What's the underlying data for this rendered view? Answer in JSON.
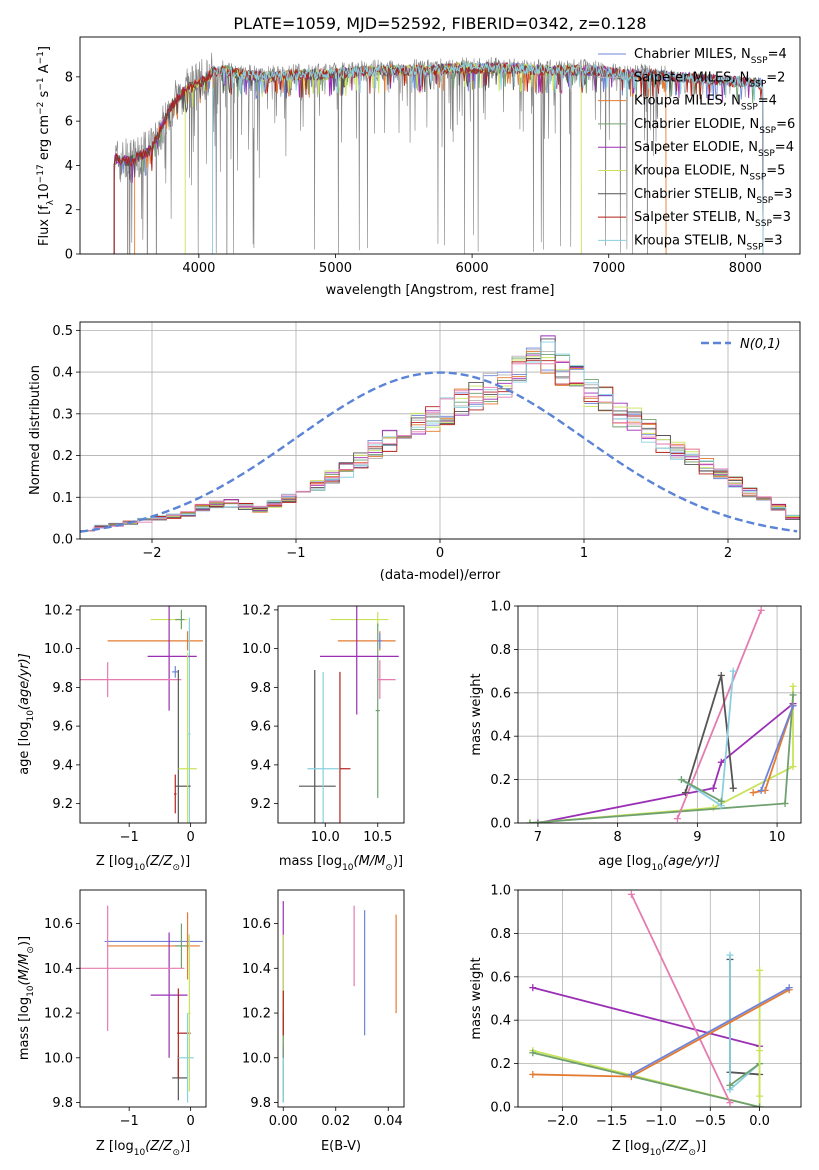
{
  "figure_title": "PLATE=1059, MJD=52592, FIBERID=0342, z=0.128",
  "palette": [
    "#6f84d8",
    "#b5b5b5",
    "#e47b32",
    "#6fa06f",
    "#9a2fb5",
    "#c9e35a",
    "#555555",
    "#b2221c",
    "#8ad0e0",
    "#e57bb0"
  ],
  "chart_data": [
    {
      "id": "spectrum",
      "type": "line",
      "title": "PLATE=1059, MJD=52592, FIBERID=0342, z=0.128",
      "xlabel": "wavelength [Angstrom, rest frame]",
      "ylabel": "Flux [f",
      "ylabel_sub": "λ",
      "ylabel_rest": "10",
      "ylabel_exp": "−17",
      "ylabel_tail": " erg cm",
      "xlim": [
        3130,
        8400
      ],
      "ylim": [
        0,
        9.8
      ],
      "xticks": [
        4000,
        5000,
        6000,
        7000,
        8000
      ],
      "yticks": [
        0,
        2,
        4,
        6,
        8
      ],
      "grid": false,
      "legend_position": "top-right",
      "data_color": "#808080",
      "legend": [
        {
          "name": "Chabrier MILES, N",
          "sub": "SSP",
          "val": "=4",
          "color": "#6f84d8"
        },
        {
          "name": "Salpeter MILES, N",
          "sub": "SSP",
          "val": "=2",
          "color": "#b5b5b5"
        },
        {
          "name": "Kroupa MILES, N",
          "sub": "SSP",
          "val": "=4",
          "color": "#e47b32"
        },
        {
          "name": "Chabrier ELODIE, N",
          "sub": "SSP",
          "val": "=6",
          "color": "#6fa06f"
        },
        {
          "name": "Salpeter ELODIE, N",
          "sub": "SSP",
          "val": "=4",
          "color": "#9a2fb5"
        },
        {
          "name": "Kroupa ELODIE, N",
          "sub": "SSP",
          "val": "=5",
          "color": "#c9e35a"
        },
        {
          "name": "Chabrier STELIB, N",
          "sub": "SSP",
          "val": "=3",
          "color": "#555555"
        },
        {
          "name": "Salpeter STELIB, N",
          "sub": "SSP",
          "val": "=3",
          "color": "#b2221c"
        },
        {
          "name": "Kroupa STELIB, N",
          "sub": "SSP",
          "val": "=3",
          "color": "#8ad0e0"
        }
      ],
      "continuum": {
        "x": [
          3350,
          3500,
          3650,
          3800,
          3900,
          4000,
          4100,
          4200,
          4300,
          4500,
          4700,
          4900,
          5100,
          5300,
          5500,
          5700,
          5900,
          6100,
          6300,
          6500,
          6700,
          6900,
          7100,
          7300,
          7500,
          7700,
          7900,
          8100
        ],
        "y": [
          4.3,
          4.2,
          4.7,
          6.7,
          7.4,
          7.7,
          8.2,
          8.3,
          8.1,
          8.0,
          8.1,
          8.1,
          8.2,
          8.3,
          8.3,
          8.3,
          8.4,
          8.4,
          8.4,
          8.3,
          8.3,
          8.3,
          8.1,
          8.1,
          8.0,
          7.9,
          7.8,
          7.7
        ]
      }
    },
    {
      "id": "residuals",
      "type": "histogram",
      "xlabel": "(data-model)/error",
      "ylabel": "Normed distribution",
      "xlim": [
        -2.5,
        2.5
      ],
      "ylim": [
        0,
        0.52
      ],
      "xticks": [
        -2,
        -1,
        0,
        1,
        2
      ],
      "yticks": [
        0.0,
        0.1,
        0.2,
        0.3,
        0.4,
        0.5
      ],
      "grid": true,
      "legend_position": "top-right",
      "gaussian_label": "N(0,1)",
      "gaussian_color": "#5b84d6",
      "bin_width": 0.1,
      "bin_start": -2.5,
      "series_heights": [
        0.022,
        0.03,
        0.034,
        0.04,
        0.045,
        0.05,
        0.055,
        0.06,
        0.075,
        0.082,
        0.086,
        0.078,
        0.072,
        0.085,
        0.098,
        0.115,
        0.13,
        0.15,
        0.165,
        0.19,
        0.215,
        0.235,
        0.255,
        0.275,
        0.29,
        0.305,
        0.325,
        0.34,
        0.36,
        0.38,
        0.42,
        0.445,
        0.44,
        0.405,
        0.38,
        0.35,
        0.335,
        0.3,
        0.285,
        0.26,
        0.23,
        0.21,
        0.195,
        0.175,
        0.155,
        0.135,
        0.115,
        0.095,
        0.075,
        0.052
      ]
    },
    {
      "id": "age_vs_Z",
      "type": "errorbar",
      "xlabel": "Z [log",
      "xlabel_sub": "10",
      "xlabel_mid": "(Z/Z",
      "xlabel_sub2": "⊙",
      "xlabel_tail": ")]",
      "ylabel": "age  [log",
      "ylabel_sub": "10",
      "ylabel_tail": "(age/yr)]",
      "xlim": [
        -1.8,
        0.25
      ],
      "ylim": [
        9.1,
        10.22
      ],
      "xticks": [
        -1,
        0
      ],
      "yticks": [
        9.2,
        9.4,
        9.6,
        9.8,
        10.0,
        10.2
      ],
      "points": [
        {
          "x": -0.25,
          "y": 9.88,
          "xerr": [
            0.05,
            0.05
          ],
          "yerr": 0.03,
          "color": "#6f84d8"
        },
        {
          "x": -0.05,
          "y": 10.04,
          "xerr": [
            1.3,
            0.25
          ],
          "yerr": 0.05,
          "color": "#e47b32"
        },
        {
          "x": -0.02,
          "y": 9.56,
          "xerr": [
            0.02,
            0.02
          ],
          "yerr": 0.6,
          "color": "#8ad0e0"
        },
        {
          "x": -0.15,
          "y": 10.15,
          "xerr": [
            0.5,
            0.1
          ],
          "yerr": 0.04,
          "color": "#c9e35a"
        },
        {
          "x": -0.15,
          "y": 10.15,
          "xerr": [
            0.1,
            0.05
          ],
          "yerr": 0.05,
          "color": "#6fa06f"
        },
        {
          "x": -0.35,
          "y": 9.96,
          "xerr": [
            0.35,
            0.45
          ],
          "yerr": 0.28,
          "color": "#9a2fb5"
        },
        {
          "x": -1.35,
          "y": 9.84,
          "xerr": [
            0.45,
            1.2
          ],
          "yerr": 0.09,
          "color": "#e57bb0"
        },
        {
          "x": -0.2,
          "y": 9.29,
          "xerr": [
            0.05,
            0.2
          ],
          "yerr": 0.6,
          "color": "#555555"
        },
        {
          "x": -0.25,
          "y": 9.25,
          "xerr": [
            0.02,
            0.02
          ],
          "yerr": 0.1,
          "color": "#b2221c"
        },
        {
          "x": -0.05,
          "y": 9.38,
          "xerr": [
            0.15,
            0.15
          ],
          "yerr": 0.6,
          "color": "#c9e35a"
        }
      ]
    },
    {
      "id": "age_vs_mass",
      "type": "errorbar",
      "xlabel": "mass [log",
      "xlabel_sub": "10",
      "xlabel_mid": "(M/M",
      "xlabel_sub2": "⊙",
      "xlabel_tail": ")]",
      "xlim": [
        9.55,
        10.75
      ],
      "ylim": [
        9.1,
        10.22
      ],
      "xticks": [
        10.0,
        10.5
      ],
      "yticks": [
        9.2,
        9.4,
        9.6,
        9.8,
        10.0,
        10.2
      ],
      "points": [
        {
          "x": 9.9,
          "y": 9.29,
          "xerr": [
            0.15,
            0.2
          ],
          "yerr": 0.6,
          "color": "#555555"
        },
        {
          "x": 9.98,
          "y": 9.38,
          "xerr": [
            0.15,
            0.15
          ],
          "yerr": 0.5,
          "color": "#8ad0e0"
        },
        {
          "x": 10.14,
          "y": 9.38,
          "xerr": [
            0.0,
            0.1
          ],
          "yerr": 0.5,
          "color": "#b2221c"
        },
        {
          "x": 10.5,
          "y": 10.15,
          "xerr": [
            0.45,
            0.1
          ],
          "yerr": 0.04,
          "color": "#c9e35a"
        },
        {
          "x": 10.5,
          "y": 9.68,
          "xerr": [
            0.02,
            0.02
          ],
          "yerr": 0.45,
          "color": "#6fa06f"
        },
        {
          "x": 10.52,
          "y": 10.04,
          "xerr": [
            0.4,
            0.15
          ],
          "yerr": 0.05,
          "color": "#e47b32"
        },
        {
          "x": 10.3,
          "y": 9.96,
          "xerr": [
            0.35,
            0.4
          ],
          "yerr": 0.3,
          "color": "#9a2fb5"
        },
        {
          "x": 10.52,
          "y": 9.84,
          "xerr": [
            0.02,
            0.15
          ],
          "yerr": 0.1,
          "color": "#e57bb0"
        },
        {
          "x": 10.52,
          "y": 10.04,
          "xerr": [
            0.02,
            0.02
          ],
          "yerr": 0.04,
          "color": "#6f84d8"
        }
      ]
    },
    {
      "id": "massweight_vs_age",
      "type": "line",
      "xlabel": "age  [log",
      "xlabel_sub": "10",
      "xlabel_tail": "(age/yr)]",
      "ylabel": "mass weight",
      "xlim": [
        6.75,
        10.3
      ],
      "ylim": [
        0,
        1.0
      ],
      "xticks": [
        7,
        8,
        9,
        10
      ],
      "yticks": [
        0.0,
        0.2,
        0.4,
        0.6,
        0.8,
        1.0
      ],
      "grid": true,
      "series": [
        {
          "color": "#9a2fb5",
          "x": [
            7.0,
            9.2,
            9.3,
            10.2
          ],
          "y": [
            0.0,
            0.16,
            0.28,
            0.55
          ]
        },
        {
          "color": "#c9e35a",
          "x": [
            6.9,
            9.2,
            10.2,
            10.2
          ],
          "y": [
            0.0,
            0.07,
            0.26,
            0.63
          ]
        },
        {
          "color": "#6fa06f",
          "x": [
            6.9,
            10.1,
            10.2
          ],
          "y": [
            0.0,
            0.09,
            0.59
          ]
        },
        {
          "color": "#e57bb0",
          "x": [
            8.75,
            9.8
          ],
          "y": [
            0.02,
            0.98
          ]
        },
        {
          "color": "#555555",
          "x": [
            8.85,
            9.3,
            9.45
          ],
          "y": [
            0.14,
            0.68,
            0.16
          ]
        },
        {
          "color": "#8ad0e0",
          "x": [
            8.8,
            9.3,
            9.45
          ],
          "y": [
            0.2,
            0.08,
            0.7
          ]
        },
        {
          "color": "#6fa06f",
          "x": [
            8.8,
            9.3
          ],
          "y": [
            0.2,
            0.1
          ]
        },
        {
          "color": "#e47b32",
          "x": [
            9.7,
            9.85,
            10.2
          ],
          "y": [
            0.14,
            0.15,
            0.54
          ]
        },
        {
          "color": "#6f84d8",
          "x": [
            9.8,
            10.2
          ],
          "y": [
            0.15,
            0.54
          ]
        }
      ]
    },
    {
      "id": "mass_vs_Z",
      "type": "errorbar",
      "xlabel": "Z [log",
      "xlabel_sub": "10",
      "xlabel_mid": "(Z/Z",
      "xlabel_sub2": "⊙",
      "xlabel_tail": ")]",
      "ylabel": "mass [log",
      "ylabel_sub": "10",
      "ylabel_mid": "(M/M",
      "ylabel_sub2": "⊙",
      "ylabel_tail": ")]",
      "xlim": [
        -1.8,
        0.25
      ],
      "ylim": [
        9.78,
        10.75
      ],
      "xticks": [
        -1,
        0
      ],
      "yticks": [
        9.8,
        10.0,
        10.2,
        10.4,
        10.6
      ],
      "points": [
        {
          "x": -0.05,
          "y": 10.52,
          "xerr": [
            1.35,
            0.25
          ],
          "yerr": 0.04,
          "color": "#6f84d8"
        },
        {
          "x": -0.05,
          "y": 10.5,
          "xerr": [
            1.3,
            0.2
          ],
          "yerr": 0.15,
          "color": "#e47b32"
        },
        {
          "x": -0.15,
          "y": 10.5,
          "xerr": [
            0.1,
            0.1
          ],
          "yerr": 0.1,
          "color": "#6fa06f"
        },
        {
          "x": -0.35,
          "y": 10.28,
          "xerr": [
            0.3,
            0.3
          ],
          "yerr": 0.28,
          "color": "#9a2fb5"
        },
        {
          "x": -1.35,
          "y": 10.4,
          "xerr": [
            0.45,
            1.25
          ],
          "yerr": 0.28,
          "color": "#e57bb0"
        },
        {
          "x": -0.2,
          "y": 9.91,
          "xerr": [
            0.1,
            0.15
          ],
          "yerr": 0.1,
          "color": "#555555"
        },
        {
          "x": -0.2,
          "y": 10.11,
          "xerr": [
            0.02,
            0.2
          ],
          "yerr": 0.2,
          "color": "#b2221c"
        },
        {
          "x": -0.05,
          "y": 10.0,
          "xerr": [
            0.15,
            0.1
          ],
          "yerr": 0.2,
          "color": "#8ad0e0"
        },
        {
          "x": -0.02,
          "y": 10.2,
          "xerr": [
            0.02,
            0.02
          ],
          "yerr": 0.35,
          "color": "#c9e35a"
        }
      ]
    },
    {
      "id": "mass_vs_EBV",
      "type": "errorbar",
      "xlabel": "E(B-V)",
      "xlim": [
        -0.002,
        0.046
      ],
      "ylim": [
        9.78,
        10.75
      ],
      "xticks": [
        0.0,
        0.02,
        0.04
      ],
      "yticks": [
        9.8,
        10.0,
        10.2,
        10.4,
        10.6
      ],
      "points": [
        {
          "x": 0.0,
          "y": 10.35,
          "xerr": [
            0,
            0
          ],
          "yerr": 0.35,
          "color": "#9a2fb5"
        },
        {
          "x": 0.0,
          "y": 10.3,
          "xerr": [
            0,
            0
          ],
          "yerr": 0.25,
          "color": "#c9e35a"
        },
        {
          "x": 0.0,
          "y": 10.0,
          "xerr": [
            0,
            0
          ],
          "yerr": 0.2,
          "color": "#6fa06f"
        },
        {
          "x": 0.0,
          "y": 10.2,
          "xerr": [
            0,
            0
          ],
          "yerr": 0.1,
          "color": "#b2221c"
        },
        {
          "x": 0.0,
          "y": 9.9,
          "xerr": [
            0,
            0
          ],
          "yerr": 0.1,
          "color": "#8ad0e0"
        },
        {
          "x": 0.027,
          "y": 10.5,
          "xerr": [
            0,
            0
          ],
          "yerr": 0.18,
          "color": "#e57bb0"
        },
        {
          "x": 0.031,
          "y": 10.38,
          "xerr": [
            0,
            0
          ],
          "yerr": 0.28,
          "color": "#6f84d8"
        },
        {
          "x": 0.043,
          "y": 10.42,
          "xerr": [
            0,
            0
          ],
          "yerr": 0.22,
          "color": "#e47b32"
        }
      ]
    },
    {
      "id": "massweight_vs_Z",
      "type": "line",
      "xlabel": "Z [log",
      "xlabel_sub": "10",
      "xlabel_mid": "(Z/Z",
      "xlabel_sub2": "⊙",
      "xlabel_tail": ")]",
      "ylabel": "mass weight",
      "xlim": [
        -2.45,
        0.42
      ],
      "ylim": [
        0,
        1.0
      ],
      "xticks": [
        -2.0,
        -1.5,
        -1.0,
        -0.5,
        0.0
      ],
      "tick_labels": [
        "−2.0",
        "−1.5",
        "−1.0",
        "−0.5",
        "0.0"
      ],
      "yticks": [
        0.0,
        0.2,
        0.4,
        0.6,
        0.8,
        1.0
      ],
      "grid": true,
      "series": [
        {
          "color": "#9a2fb5",
          "x": [
            -2.3,
            0.0
          ],
          "y": [
            0.55,
            0.28
          ]
        },
        {
          "color": "#c9e35a",
          "x": [
            -2.3,
            0.0,
            0.0
          ],
          "y": [
            0.26,
            0.0,
            0.63
          ]
        },
        {
          "color": "#6fa06f",
          "x": [
            -2.3,
            0.0
          ],
          "y": [
            0.25,
            0.0
          ]
        },
        {
          "color": "#e57bb0",
          "x": [
            -1.3,
            -0.3
          ],
          "y": [
            0.98,
            0.02
          ]
        },
        {
          "color": "#555555",
          "x": [
            -0.3,
            -0.3,
            0.0
          ],
          "y": [
            0.68,
            0.16,
            0.15
          ]
        },
        {
          "color": "#8ad0e0",
          "x": [
            -0.3,
            -0.3,
            0.0
          ],
          "y": [
            0.7,
            0.08,
            0.2
          ]
        },
        {
          "color": "#6fa06f",
          "x": [
            -0.3,
            0.0
          ],
          "y": [
            0.1,
            0.2
          ]
        },
        {
          "color": "#e47b32",
          "x": [
            -2.3,
            -1.3,
            0.3
          ],
          "y": [
            0.15,
            0.14,
            0.54
          ]
        },
        {
          "color": "#6f84d8",
          "x": [
            -1.3,
            0.3
          ],
          "y": [
            0.15,
            0.55
          ]
        },
        {
          "color": "#c9e35a",
          "x": [
            0.0,
            0.0
          ],
          "y": [
            0.05,
            0.26
          ]
        }
      ]
    }
  ]
}
